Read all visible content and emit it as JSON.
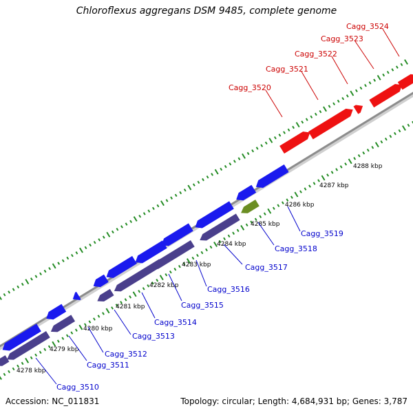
{
  "title": "Chloroflexus aggregans DSM 9485, complete genome",
  "footer": {
    "accession": "Accession: NC_011831",
    "summary": "Topology: circular; Length: 4,684,931 bp; Genes: 3,787"
  },
  "colors": {
    "forward_gene": "#ee1111",
    "reverse_gene": "#1a1aee",
    "reverse_shadow": "#4a3f8c",
    "rna_gene": "#6b8e23",
    "backbone": "#8c8c8c",
    "tick": "#228b22",
    "forward_label": "#cc0000",
    "reverse_label": "#0000cc"
  },
  "kbp_ticks": [
    {
      "label": "4278 kbp"
    },
    {
      "label": "4279 kbp"
    },
    {
      "label": "4280 kbp"
    },
    {
      "label": "4281 kbp"
    },
    {
      "label": "4282 kbp"
    },
    {
      "label": "4283 kbp"
    },
    {
      "label": "4284 kbp"
    },
    {
      "label": "4285 kbp"
    },
    {
      "label": "4286 kbp"
    },
    {
      "label": "4287 kbp"
    },
    {
      "label": "4288 kbp"
    }
  ],
  "forward_genes": [
    {
      "name": "Cagg_3520"
    },
    {
      "name": "Cagg_3521"
    },
    {
      "name": "Cagg_3522"
    },
    {
      "name": "Cagg_3523"
    },
    {
      "name": "Cagg_3524"
    }
  ],
  "reverse_genes": [
    {
      "name": "Cagg_3510"
    },
    {
      "name": "Cagg_3511"
    },
    {
      "name": "Cagg_3512"
    },
    {
      "name": "Cagg_3513"
    },
    {
      "name": "Cagg_3514"
    },
    {
      "name": "Cagg_3515"
    },
    {
      "name": "Cagg_3516"
    },
    {
      "name": "Cagg_3517"
    },
    {
      "name": "Cagg_3518"
    },
    {
      "name": "Cagg_3519"
    }
  ]
}
